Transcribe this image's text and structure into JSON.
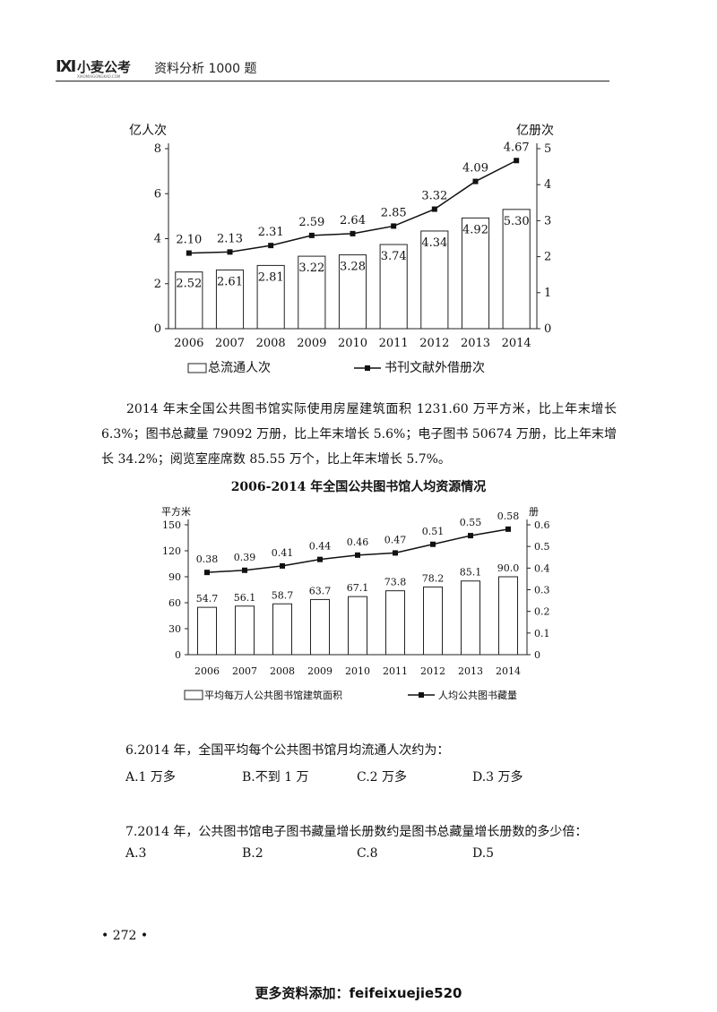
{
  "header": {
    "logo_mark": "IXI",
    "logo_text": "小麦公考",
    "logo_sub": "XIAOMAIGONGKAO.COM",
    "book_title": "资料分析 1000 题"
  },
  "chart_data": [
    {
      "type": "bar",
      "categories": [
        "2006",
        "2007",
        "2008",
        "2009",
        "2010",
        "2011",
        "2012",
        "2013",
        "2014"
      ],
      "series": [
        {
          "name": "总流通人次",
          "type": "bar",
          "axis": "left",
          "values": [
            2.52,
            2.61,
            2.81,
            3.22,
            3.28,
            3.74,
            4.34,
            4.92,
            5.3
          ]
        },
        {
          "name": "书刊文献外借册次",
          "type": "line",
          "axis": "right",
          "values": [
            2.1,
            2.13,
            2.31,
            2.59,
            2.64,
            2.85,
            3.32,
            4.09,
            4.67
          ]
        }
      ],
      "ylabel_left": "亿人次",
      "ylabel_right": "亿册次",
      "ylim_left": [
        0,
        8
      ],
      "yticks_left": [
        "0",
        "2",
        "4",
        "6",
        "8"
      ],
      "ylim_right": [
        0,
        5
      ],
      "yticks_right": [
        "0",
        "1",
        "2",
        "3",
        "4",
        "5"
      ],
      "legend_position": "bottom"
    },
    {
      "type": "bar",
      "title": "2006-2014 年全国公共图书馆人均资源情况",
      "categories": [
        "2006",
        "2007",
        "2008",
        "2009",
        "2010",
        "2011",
        "2012",
        "2013",
        "2014"
      ],
      "series": [
        {
          "name": "平均每万人公共图书馆建筑面积",
          "type": "bar",
          "axis": "left",
          "values": [
            54.7,
            56.1,
            58.7,
            63.7,
            67.1,
            73.8,
            78.2,
            85.1,
            90.0
          ]
        },
        {
          "name": "人均公共图书藏量",
          "type": "line",
          "axis": "right",
          "values": [
            0.38,
            0.39,
            0.41,
            0.44,
            0.46,
            0.47,
            0.51,
            0.55,
            0.58
          ]
        }
      ],
      "ylabel_left": "平方米",
      "ylabel_right": "册",
      "ylim_left": [
        0,
        150
      ],
      "yticks_left": [
        "0",
        "30",
        "60",
        "90",
        "120",
        "150"
      ],
      "ylim_right": [
        0,
        0.6
      ],
      "yticks_right": [
        "0",
        "0.1",
        "0.2",
        "0.3",
        "0.4",
        "0.5",
        "0.6"
      ],
      "legend_position": "bottom"
    }
  ],
  "paragraph": "2014 年末全国公共图书馆实际使用房屋建筑面积 1231.60 万平方米，比上年末增长 6.3%；图书总藏量 79092 万册，比上年末增长 5.6%；电子图书 50674 万册，比上年末增长 34.2%；阅览室座席数 85.55 万个，比上年末增长 5.7%。",
  "questions": [
    {
      "text": "6.2014 年，全国平均每个公共图书馆月均流通人次约为：",
      "options": [
        "A.1 万多",
        "B.不到 1 万",
        "C.2 万多",
        "D.3 万多"
      ]
    },
    {
      "text": "7.2014 年，公共图书馆电子图书藏量增长册数约是图书总藏量增长册数的多少倍：",
      "options": [
        "A.3",
        "B.2",
        "C.8",
        "D.5"
      ]
    }
  ],
  "page_number": "• 272 •",
  "footer": "更多资料添加：feifeixuejie520"
}
